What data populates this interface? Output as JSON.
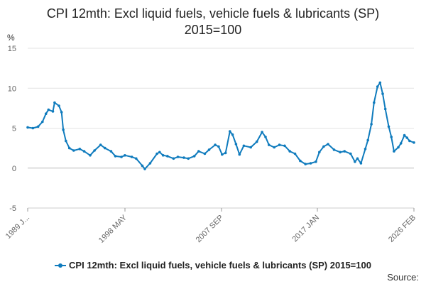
{
  "chart_data": {
    "type": "line",
    "title": "CPI 12mth: Excl liquid fuels, vehicle fuels & lubricants (SP)",
    "subtitle": "2015=100",
    "ylabel": "%",
    "xlabel": "",
    "ylim": [
      -5,
      15
    ],
    "yticks": [
      -5,
      0,
      5,
      10,
      15
    ],
    "xlim": [
      "1989-01",
      "2026-02"
    ],
    "xticks": [
      "1989 J...",
      "1998 MAY",
      "2007 SEP",
      "2017 JAN",
      "2026 FEB"
    ],
    "grid": "horizontal",
    "legend_position": "bottom",
    "series": [
      {
        "name": "CPI 12mth: Excl liquid fuels, vehicle fuels & lubricants (SP) 2015=100",
        "color": "#0f7bbd",
        "points": [
          [
            "1989-01",
            5.1
          ],
          [
            "1989-07",
            5.0
          ],
          [
            "1990-01",
            5.2
          ],
          [
            "1990-06",
            5.8
          ],
          [
            "1990-10",
            6.8
          ],
          [
            "1991-01",
            7.3
          ],
          [
            "1991-06",
            7.1
          ],
          [
            "1991-08",
            8.2
          ],
          [
            "1992-01",
            7.8
          ],
          [
            "1992-04",
            7.0
          ],
          [
            "1992-06",
            4.8
          ],
          [
            "1992-09",
            3.4
          ],
          [
            "1993-01",
            2.5
          ],
          [
            "1993-06",
            2.2
          ],
          [
            "1994-01",
            2.4
          ],
          [
            "1994-06",
            2.1
          ],
          [
            "1995-01",
            1.6
          ],
          [
            "1995-06",
            2.2
          ],
          [
            "1996-01",
            2.9
          ],
          [
            "1996-06",
            2.5
          ],
          [
            "1997-01",
            2.1
          ],
          [
            "1997-06",
            1.5
          ],
          [
            "1998-01",
            1.4
          ],
          [
            "1998-05",
            1.6
          ],
          [
            "1999-01",
            1.4
          ],
          [
            "1999-06",
            1.2
          ],
          [
            "2000-01",
            0.3
          ],
          [
            "2000-04",
            -0.1
          ],
          [
            "2000-10",
            0.6
          ],
          [
            "2001-06",
            1.8
          ],
          [
            "2001-09",
            2.0
          ],
          [
            "2002-01",
            1.6
          ],
          [
            "2002-06",
            1.5
          ],
          [
            "2003-01",
            1.2
          ],
          [
            "2003-06",
            1.4
          ],
          [
            "2004-01",
            1.3
          ],
          [
            "2004-06",
            1.2
          ],
          [
            "2005-01",
            1.5
          ],
          [
            "2005-06",
            2.1
          ],
          [
            "2006-01",
            1.8
          ],
          [
            "2006-06",
            2.3
          ],
          [
            "2007-01",
            2.9
          ],
          [
            "2007-05",
            2.7
          ],
          [
            "2007-09",
            1.7
          ],
          [
            "2008-01",
            1.9
          ],
          [
            "2008-06",
            4.6
          ],
          [
            "2008-09",
            4.2
          ],
          [
            "2009-01",
            3.0
          ],
          [
            "2009-05",
            1.7
          ],
          [
            "2009-10",
            2.8
          ],
          [
            "2010-06",
            2.6
          ],
          [
            "2011-01",
            3.3
          ],
          [
            "2011-07",
            4.5
          ],
          [
            "2011-11",
            3.9
          ],
          [
            "2012-03",
            2.9
          ],
          [
            "2012-09",
            2.6
          ],
          [
            "2013-03",
            2.9
          ],
          [
            "2013-09",
            2.8
          ],
          [
            "2014-03",
            2.1
          ],
          [
            "2014-09",
            1.8
          ],
          [
            "2015-03",
            0.9
          ],
          [
            "2015-09",
            0.5
          ],
          [
            "2016-03",
            0.6
          ],
          [
            "2016-09",
            0.8
          ],
          [
            "2017-01",
            2.0
          ],
          [
            "2017-06",
            2.7
          ],
          [
            "2017-11",
            3.0
          ],
          [
            "2018-06",
            2.3
          ],
          [
            "2019-01",
            2.0
          ],
          [
            "2019-06",
            2.1
          ],
          [
            "2020-01",
            1.8
          ],
          [
            "2020-06",
            0.8
          ],
          [
            "2020-09",
            1.2
          ],
          [
            "2021-01",
            0.6
          ],
          [
            "2021-06",
            2.4
          ],
          [
            "2021-09",
            3.5
          ],
          [
            "2022-01",
            5.5
          ],
          [
            "2022-04",
            8.2
          ],
          [
            "2022-08",
            10.2
          ],
          [
            "2022-11",
            10.7
          ],
          [
            "2023-02",
            9.3
          ],
          [
            "2023-05",
            7.4
          ],
          [
            "2023-09",
            5.2
          ],
          [
            "2023-12",
            3.9
          ],
          [
            "2024-03",
            2.1
          ],
          [
            "2024-08",
            2.6
          ],
          [
            "2024-11",
            3.1
          ],
          [
            "2025-03",
            4.1
          ],
          [
            "2025-06",
            3.8
          ],
          [
            "2025-09",
            3.4
          ],
          [
            "2026-02",
            3.2
          ]
        ]
      }
    ]
  },
  "source_label": "Source:"
}
